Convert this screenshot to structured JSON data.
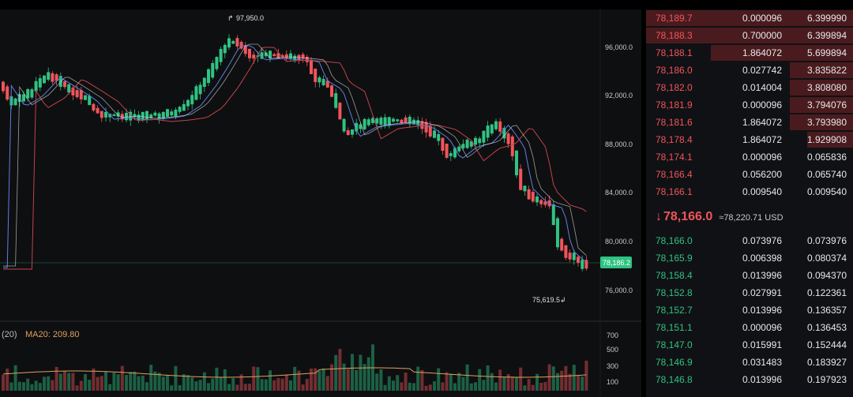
{
  "chart": {
    "high_label": "97,950.0",
    "low_label": "75,619.5",
    "current_price_tag": "78,186.2",
    "price_axis": [
      "96,000.0",
      "92,000.0",
      "88,000.0",
      "84,000.0",
      "80,000.0",
      "76,000.0"
    ],
    "volume_axis": [
      "700",
      "500",
      "300",
      "100"
    ],
    "volume_label_prefix": "(20)",
    "ma_label": "MA20: 209.80",
    "colors": {
      "up": "#2fc383",
      "down": "#f0555b",
      "ma_fast": "#5f7fe0",
      "ma_slow": "#c0444a",
      "ma_vol": "#e0a060"
    }
  },
  "orderbook": {
    "asks": [
      {
        "price": "78,189.7",
        "amount": "0.000096",
        "total": "6.399990"
      },
      {
        "price": "78,188.3",
        "amount": "0.700000",
        "total": "6.399894"
      },
      {
        "price": "78,188.1",
        "amount": "1.864072",
        "total": "5.699894"
      },
      {
        "price": "78,186.0",
        "amount": "0.027742",
        "total": "3.835822"
      },
      {
        "price": "78,182.0",
        "amount": "0.014004",
        "total": "3.808080"
      },
      {
        "price": "78,181.9",
        "amount": "0.000096",
        "total": "3.794076"
      },
      {
        "price": "78,181.6",
        "amount": "1.864072",
        "total": "3.793980"
      },
      {
        "price": "78,178.4",
        "amount": "1.864072",
        "total": "1.929908"
      },
      {
        "price": "78,174.1",
        "amount": "0.000096",
        "total": "0.065836"
      },
      {
        "price": "78,166.4",
        "amount": "0.056200",
        "total": "0.065740"
      },
      {
        "price": "78,166.1",
        "amount": "0.009540",
        "total": "0.009540"
      }
    ],
    "last_price": "78,166.0",
    "last_price_ref": "≈78,220.71 USD",
    "bids": [
      {
        "price": "78,166.0",
        "amount": "0.073976",
        "total": "0.073976"
      },
      {
        "price": "78,165.9",
        "amount": "0.006398",
        "total": "0.080374"
      },
      {
        "price": "78,158.4",
        "amount": "0.013996",
        "total": "0.094370"
      },
      {
        "price": "78,152.8",
        "amount": "0.027991",
        "total": "0.122361"
      },
      {
        "price": "78,152.7",
        "amount": "0.013996",
        "total": "0.136357"
      },
      {
        "price": "78,151.1",
        "amount": "0.000096",
        "total": "0.136453"
      },
      {
        "price": "78,147.0",
        "amount": "0.015991",
        "total": "0.152444"
      },
      {
        "price": "78,146.9",
        "amount": "0.031483",
        "total": "0.183927"
      },
      {
        "price": "78,146.8",
        "amount": "0.013996",
        "total": "0.197923"
      }
    ]
  }
}
